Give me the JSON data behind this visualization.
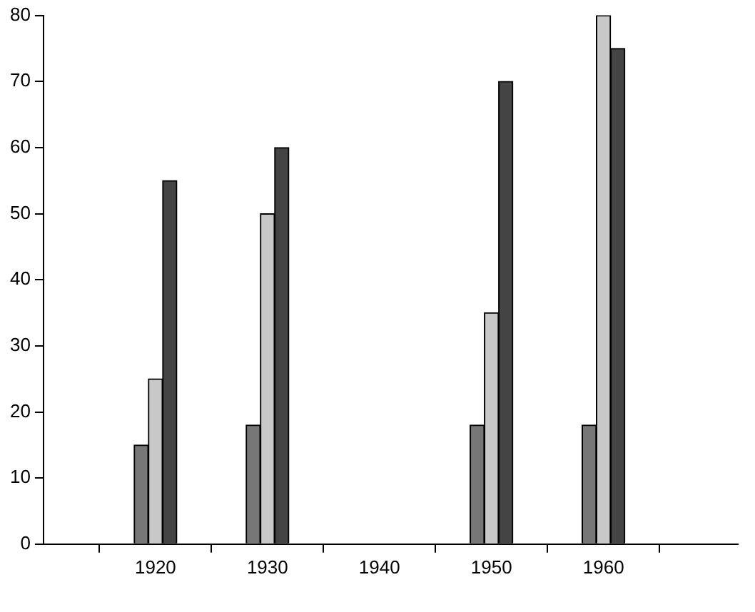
{
  "chart_data": {
    "type": "bar",
    "x": [
      1920,
      1930,
      1940,
      1950,
      1960
    ],
    "series": [
      {
        "color": "#777777",
        "values": [
          15,
          18,
          null,
          18,
          18
        ]
      },
      {
        "color": "#c8c8c8",
        "values": [
          25,
          50,
          null,
          35,
          80
        ]
      },
      {
        "color": "#444444",
        "values": [
          55,
          60,
          null,
          70,
          75
        ]
      }
    ],
    "xlim": [
      1910,
      1972
    ],
    "xticks": [
      1920,
      1930,
      1940,
      1950,
      1960
    ],
    "ylim": [
      0,
      80
    ],
    "yticks": [
      0,
      10,
      20,
      30,
      40,
      50,
      60,
      70,
      80
    ],
    "legend": false
  }
}
